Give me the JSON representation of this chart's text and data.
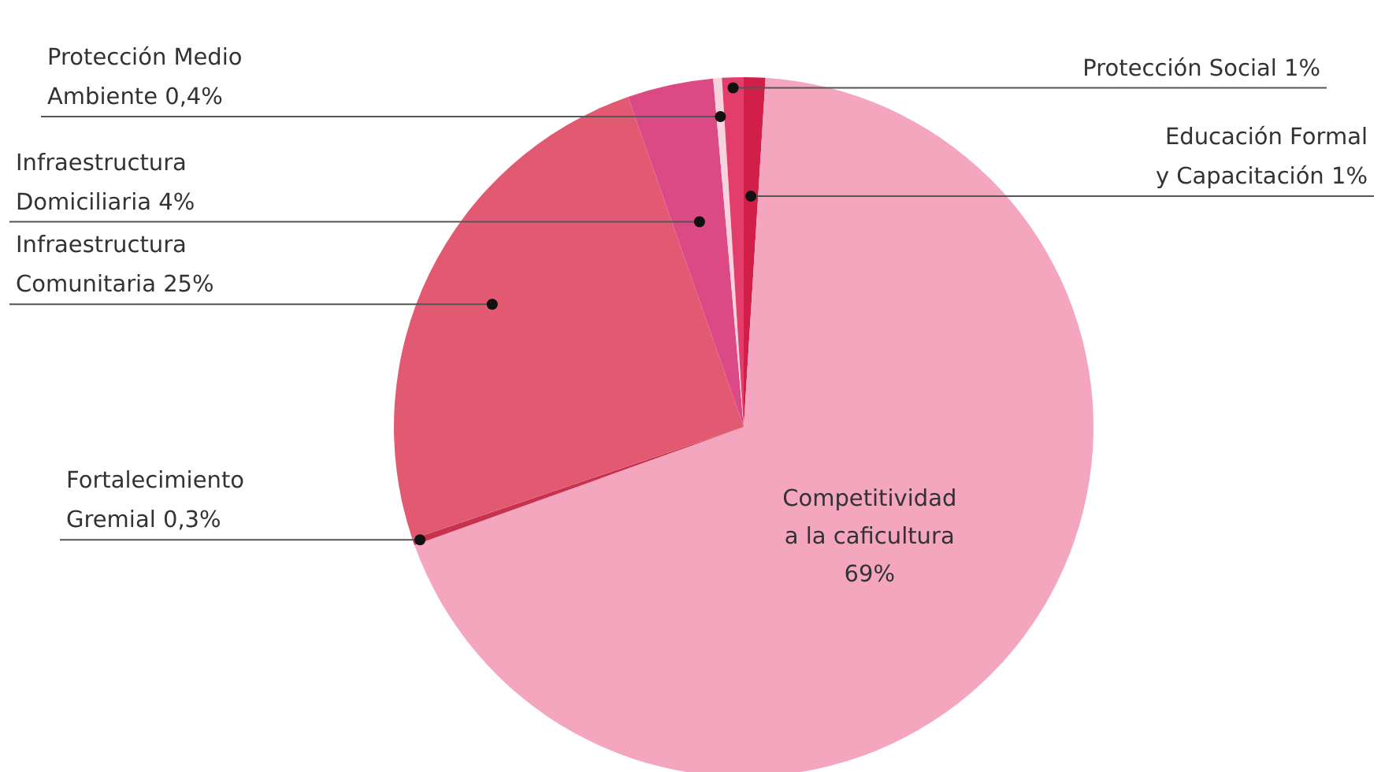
{
  "chart_data": {
    "type": "pie",
    "categories": [
      "Educación Formal y Capacitación",
      "Competitividad a la caficultura",
      "Fortalecimiento Gremial",
      "Infraestructura Comunitaria",
      "Infraestructura Domiciliaria",
      "Protección Medio Ambiente",
      "Protección Social"
    ],
    "values": [
      1,
      69,
      0.3,
      25,
      4,
      0.4,
      1
    ],
    "value_labels": [
      "1%",
      "69%",
      "0,3%",
      "25%",
      "4%",
      "0,4%",
      "1%"
    ],
    "colors": [
      "#d21f4a",
      "#f4a6bf",
      "#c8324f",
      "#e25a72",
      "#dc4a86",
      "#f6d3dc",
      "#e33d6c"
    ]
  }
}
